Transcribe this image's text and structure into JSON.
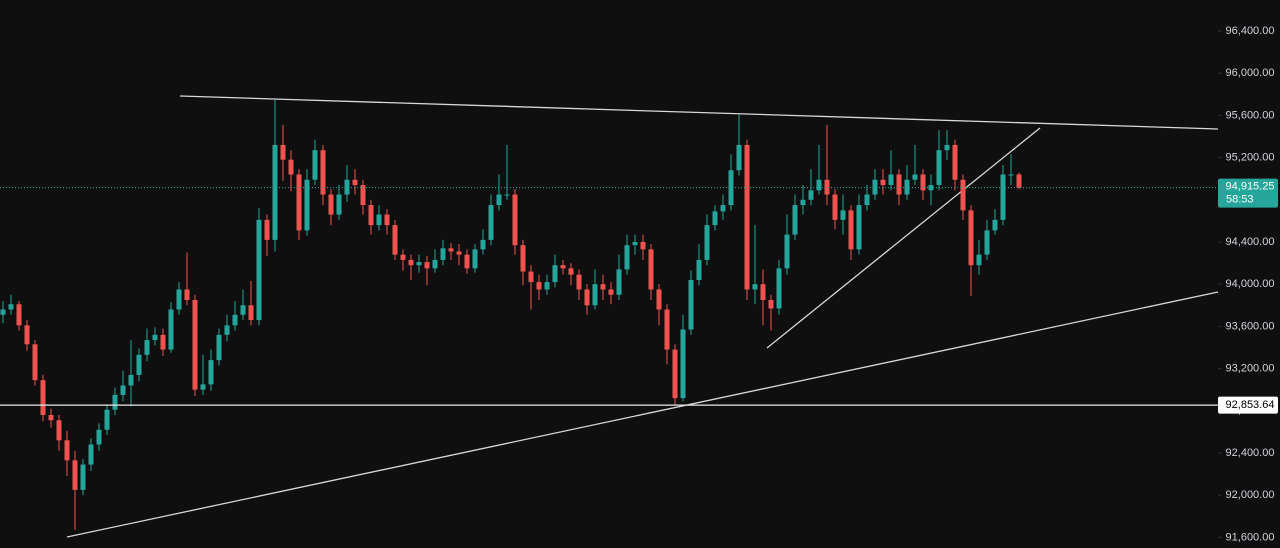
{
  "chart_data": {
    "type": "candlestick",
    "up_color": "#26a69a",
    "down_color": "#ef5350",
    "ylim": [
      91499,
      96694
    ],
    "yticks": [
      {
        "value": 96400,
        "label": "96,400.00"
      },
      {
        "value": 96000,
        "label": "96,000.00"
      },
      {
        "value": 95600,
        "label": "95,600.00"
      },
      {
        "value": 95200,
        "label": "95,200.00"
      },
      {
        "value": 94800,
        "label": "94,800.00"
      },
      {
        "value": 94400,
        "label": "94,400.00"
      },
      {
        "value": 94000,
        "label": "94,000.00"
      },
      {
        "value": 93600,
        "label": "93,600.00"
      },
      {
        "value": 93200,
        "label": "93,200.00"
      },
      {
        "value": 92800,
        "label": "92,800.00"
      },
      {
        "value": 92400,
        "label": "92,400.00"
      },
      {
        "value": 92000,
        "label": "92,000.00"
      },
      {
        "value": 91600,
        "label": "91,600.00"
      }
    ],
    "price_line": {
      "value": 92853.64,
      "label": "92,853.64"
    },
    "last_price": {
      "value": 94915.25,
      "label": "94,915.25"
    },
    "countdown": "58:53",
    "open": [
      93710,
      93760,
      93810,
      93610,
      93430,
      93090,
      92760,
      92710,
      92520,
      92330,
      92050,
      92290,
      92480,
      92620,
      92810,
      92950,
      93040,
      93140,
      93330,
      93470,
      93520,
      93380,
      93760,
      93950,
      93850,
      93000,
      93050,
      93280,
      93520,
      93610,
      93710,
      93800,
      93660,
      94610,
      94420,
      95320,
      95180,
      95040,
      94510,
      94990,
      95270,
      94850,
      94660,
      94850,
      94990,
      94940,
      94750,
      94560,
      94660,
      94560,
      94280,
      94230,
      94180,
      94210,
      94150,
      94230,
      94340,
      94310,
      94280,
      94150,
      94330,
      94420,
      94750,
      94850,
      94850,
      94370,
      94120,
      94020,
      93950,
      94020,
      94180,
      94150,
      94090,
      93950,
      93800,
      94000,
      93950,
      93900,
      94140,
      94370,
      94400,
      94330,
      93950,
      93760,
      93380,
      92920,
      93570,
      94040,
      94230,
      94560,
      94690,
      94750,
      95080,
      95320,
      93950,
      94000,
      93850,
      93770,
      94150,
      94470,
      94750,
      94800,
      94890,
      94990,
      94850,
      94610,
      94700,
      94330,
      94750,
      94850,
      94990,
      94940,
      95040,
      94850,
      94990,
      95040,
      94890,
      94940,
      95270,
      95320,
      94990,
      94700,
      94180,
      94280,
      94510,
      94610,
      95040,
      95040
    ],
    "high": [
      93840,
      93900,
      93840,
      93660,
      93470,
      93140,
      92820,
      92760,
      92610,
      92420,
      92340,
      92540,
      92680,
      92860,
      93020,
      93180,
      93470,
      93390,
      93580,
      93590,
      93580,
      93830,
      94020,
      94300,
      93900,
      93330,
      93380,
      93580,
      93710,
      93840,
      93950,
      94030,
      94720,
      94660,
      95750,
      95510,
      95270,
      95090,
      95090,
      95370,
      95320,
      94900,
      94940,
      95130,
      95090,
      94990,
      94800,
      94750,
      94710,
      94610,
      94330,
      94280,
      94280,
      94270,
      94330,
      94420,
      94390,
      94380,
      94330,
      94380,
      94520,
      94850,
      95040,
      95320,
      94900,
      94420,
      94180,
      94090,
      94090,
      94280,
      94230,
      94200,
      94140,
      94000,
      94140,
      94090,
      94020,
      94280,
      94470,
      94470,
      94470,
      94380,
      94000,
      93810,
      93430,
      93710,
      94130,
      94380,
      94660,
      94750,
      94850,
      95230,
      95610,
      95370,
      94560,
      94140,
      93900,
      94230,
      94660,
      94850,
      94940,
      95090,
      95320,
      95510,
      94900,
      94850,
      94750,
      94850,
      94940,
      95090,
      95090,
      95270,
      95090,
      95130,
      95320,
      95090,
      95040,
      95460,
      95460,
      95370,
      95040,
      94750,
      94420,
      94610,
      94710,
      95130,
      95230,
      95060
    ],
    "low": [
      93630,
      93710,
      93560,
      93370,
      93040,
      92700,
      92640,
      92420,
      92180,
      91670,
      92000,
      92230,
      92420,
      92570,
      92760,
      92890,
      92840,
      93080,
      93270,
      93420,
      93320,
      93350,
      93710,
      93800,
      92940,
      92950,
      92990,
      93230,
      93460,
      93560,
      93660,
      93610,
      93610,
      94270,
      94310,
      94980,
      94880,
      94420,
      94460,
      94940,
      94750,
      94560,
      94610,
      94780,
      94850,
      94660,
      94470,
      94510,
      94470,
      94230,
      94130,
      94040,
      94110,
      93990,
      94110,
      94180,
      94230,
      94180,
      94100,
      94110,
      94280,
      94370,
      94700,
      94800,
      94280,
      93990,
      93760,
      93850,
      93900,
      93970,
      94090,
      93990,
      93850,
      93710,
      93760,
      93850,
      93810,
      93850,
      94090,
      94280,
      94230,
      93850,
      93610,
      93240,
      92850,
      92890,
      93520,
      93990,
      94180,
      94510,
      94610,
      94700,
      95030,
      93850,
      93810,
      93610,
      93560,
      93710,
      94090,
      94420,
      94660,
      94750,
      94850,
      94750,
      94520,
      94470,
      94230,
      94280,
      94700,
      94800,
      94850,
      94890,
      94750,
      94800,
      94940,
      94800,
      94750,
      94890,
      95180,
      94890,
      94610,
      93890,
      94090,
      94230,
      94470,
      94560,
      94940,
      94900
    ],
    "close": [
      93760,
      93810,
      93610,
      93430,
      93090,
      92760,
      92710,
      92520,
      92330,
      92050,
      92290,
      92480,
      92620,
      92810,
      92950,
      93040,
      93140,
      93330,
      93470,
      93520,
      93380,
      93760,
      93950,
      93850,
      93000,
      93050,
      93280,
      93520,
      93610,
      93710,
      93800,
      93660,
      94610,
      94420,
      95320,
      95180,
      95040,
      94510,
      94990,
      95270,
      94850,
      94660,
      94850,
      94990,
      94940,
      94750,
      94560,
      94660,
      94560,
      94280,
      94230,
      94180,
      94210,
      94150,
      94230,
      94340,
      94310,
      94280,
      94150,
      94330,
      94420,
      94750,
      94850,
      94850,
      94370,
      94120,
      94020,
      93950,
      94020,
      94180,
      94150,
      94090,
      93950,
      93800,
      94000,
      93950,
      93900,
      94140,
      94370,
      94400,
      94330,
      93950,
      93760,
      93380,
      92920,
      93570,
      94040,
      94230,
      94560,
      94690,
      94750,
      95080,
      95320,
      93950,
      94000,
      93850,
      93770,
      94150,
      94470,
      94750,
      94800,
      94890,
      94990,
      94850,
      94610,
      94700,
      94330,
      94750,
      94850,
      94990,
      94940,
      95040,
      94850,
      94990,
      95040,
      94890,
      94940,
      95270,
      95320,
      94990,
      94700,
      94180,
      94280,
      94510,
      94610,
      95040,
      95040,
      94915.25
    ]
  }
}
